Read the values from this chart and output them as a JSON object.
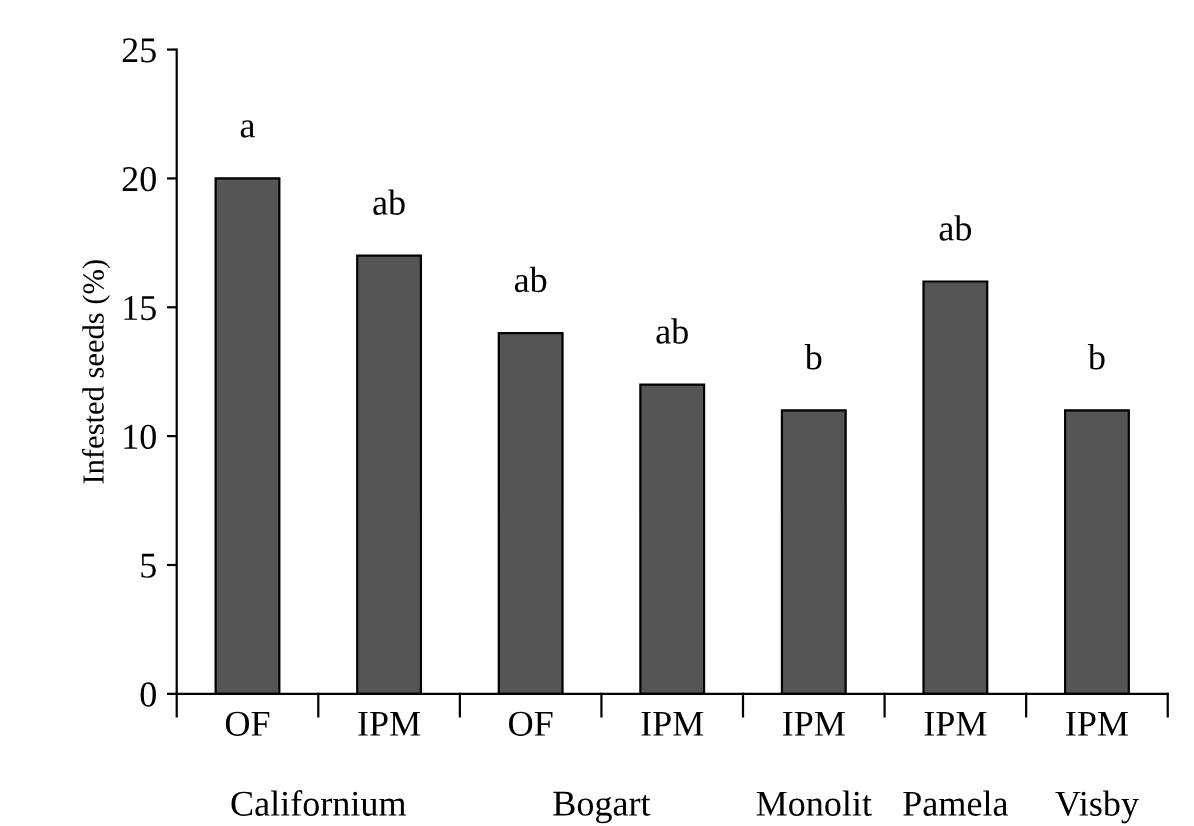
{
  "chart_data": {
    "type": "bar",
    "ylabel": "Infested seeds (%)",
    "categories": [
      "OF",
      "IPM",
      "OF",
      "IPM",
      "IPM",
      "IPM",
      "IPM"
    ],
    "values": [
      20,
      17,
      14,
      12,
      11,
      16,
      11
    ],
    "color": "#555555",
    "ylim": [
      0,
      25
    ],
    "yticks": [
      0,
      5,
      10,
      15,
      20,
      25
    ],
    "grid": false,
    "legend": false,
    "annotations": [
      {
        "text": "a",
        "y": 20
      },
      {
        "text": "ab",
        "y": 17
      },
      {
        "text": "ab",
        "y": 14
      },
      {
        "text": "ab",
        "y": 12
      },
      {
        "text": "b",
        "y": 11
      },
      {
        "text": "ab",
        "y": 16
      },
      {
        "text": "b",
        "y": 11
      },
      "Californium",
      "Bogart",
      "Monolit",
      "Pamela",
      "Visby"
    ]
  }
}
